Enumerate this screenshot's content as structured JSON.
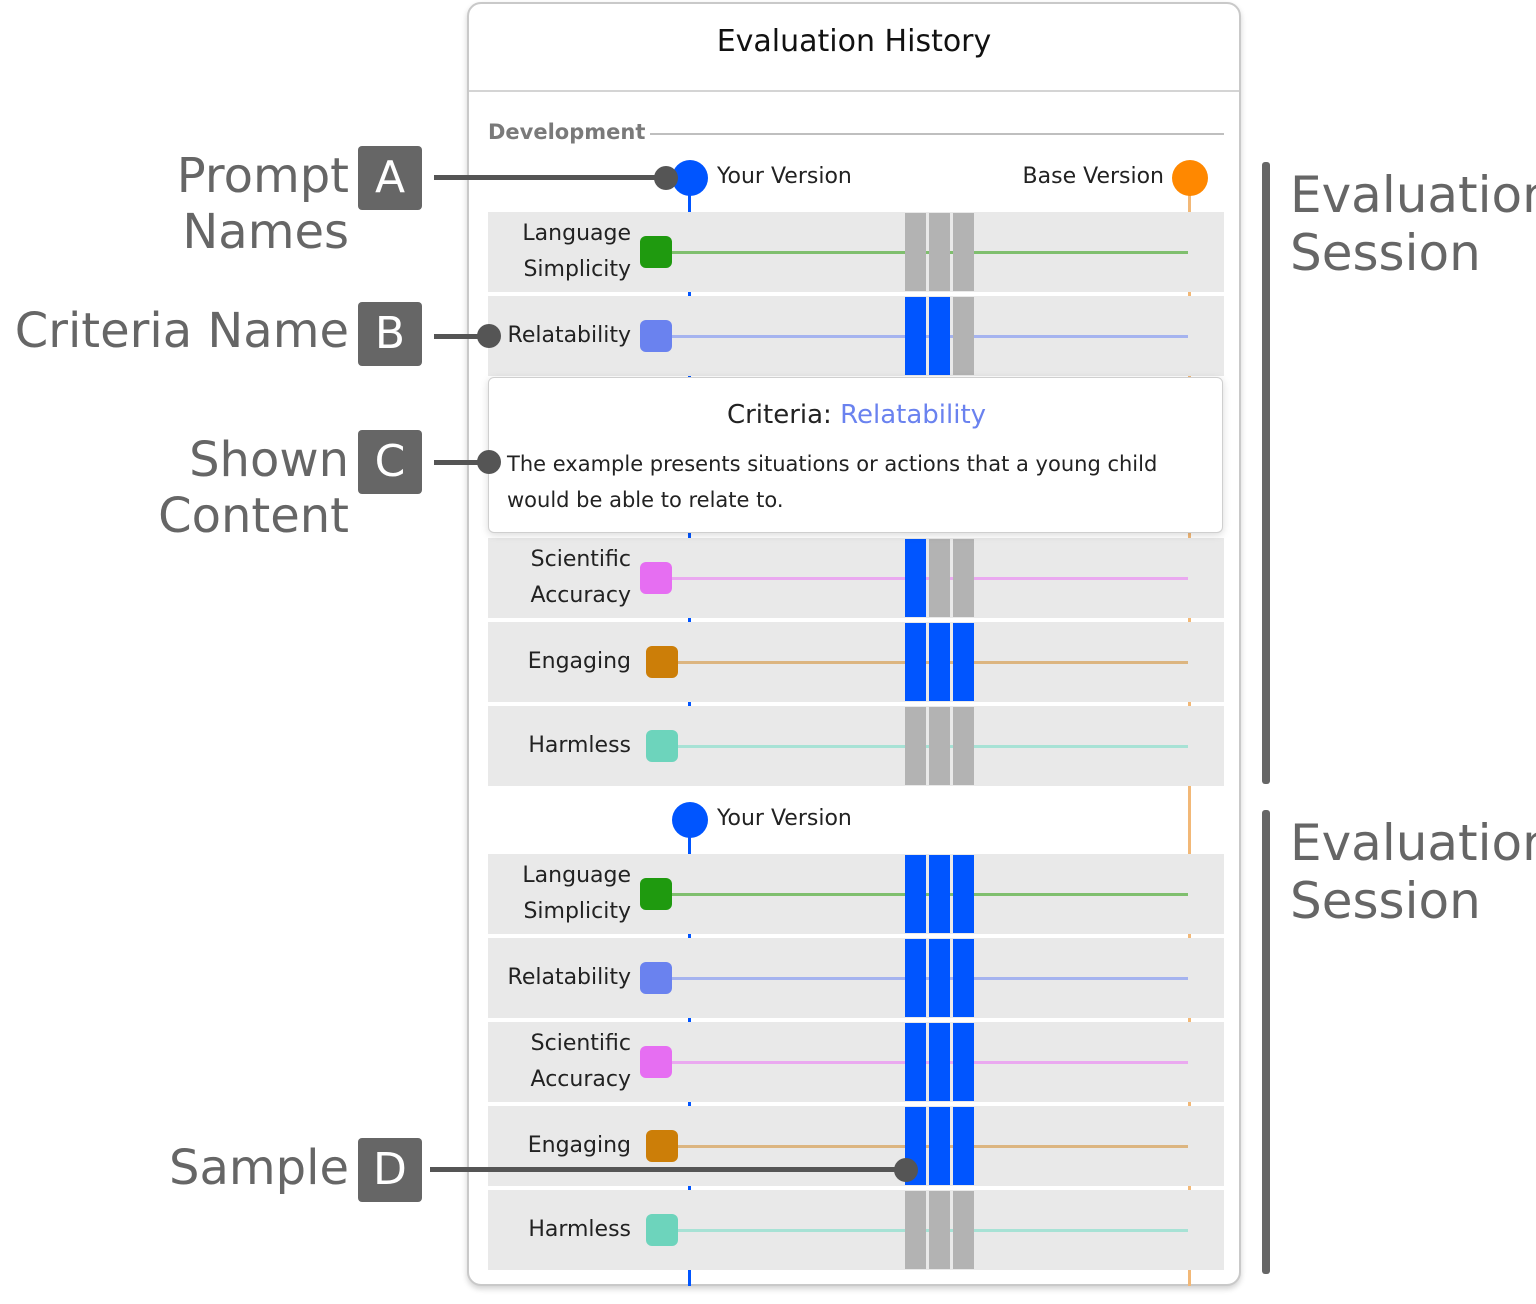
{
  "panel": {
    "title": "Evaluation History",
    "section_label": "Development"
  },
  "versions": {
    "your_label": "Your Version",
    "base_label": "Base Version",
    "your_color": "#0055ff",
    "base_color": "#ff8800"
  },
  "cell_colors": {
    "active": "#0055ff",
    "inactive": "#b3b3b3"
  },
  "criteria": [
    {
      "name": "Language\nSimplicity",
      "color": "#1f9a0f",
      "line_color": "#7fbf6e"
    },
    {
      "name": "Relatability",
      "color": "#6a82ef",
      "line_color": "#a5b3ef"
    },
    {
      "name": "Scientific\nAccuracy",
      "color": "#e66ef2",
      "line_color": "#eaa9f0"
    },
    {
      "name": "Engaging",
      "color": "#cc7e08",
      "line_color": "#dcb580"
    },
    {
      "name": "Harmless",
      "color": "#6dd4bc",
      "line_color": "#a7e2d5"
    }
  ],
  "sessions": [
    {
      "samples": [
        [
          false,
          false,
          false
        ],
        [
          true,
          true,
          false
        ],
        [
          true,
          false,
          false
        ],
        [
          true,
          true,
          true
        ],
        [
          false,
          false,
          false
        ]
      ]
    },
    {
      "samples": [
        [
          true,
          true,
          true
        ],
        [
          true,
          true,
          true
        ],
        [
          true,
          true,
          true
        ],
        [
          true,
          true,
          true
        ],
        [
          false,
          false,
          false
        ]
      ]
    }
  ],
  "tooltip": {
    "prefix": "Criteria: ",
    "criterion": "Relatability",
    "criterion_color": "#6a82ef",
    "description": "The example presents situations or actions that a young child would be able to relate to."
  },
  "annotations": [
    {
      "text": "Prompt Names",
      "letter": "A"
    },
    {
      "text": "Criteria Name",
      "letter": "B"
    },
    {
      "text": "Shown Content",
      "letter": "C"
    },
    {
      "text": "Sample",
      "letter": "D"
    }
  ],
  "session_label": "Evaluation\nSession"
}
